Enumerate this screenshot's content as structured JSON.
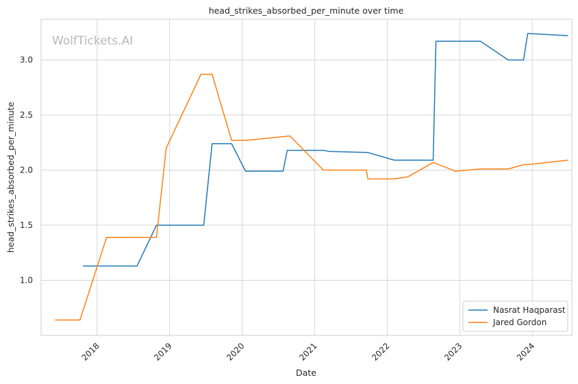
{
  "chart_data": {
    "type": "line",
    "title": "head_strikes_absorbed_per_minute over time",
    "xlabel": "Date",
    "ylabel": "head_strikes_absorbed_per_minute",
    "watermark": "WolfTickets.AI",
    "xlim": [
      "2017-03-25",
      "2024-07-18"
    ],
    "ylim": [
      0.5,
      3.37
    ],
    "x_ticks": [
      "2018",
      "2019",
      "2020",
      "2021",
      "2022",
      "2023",
      "2024"
    ],
    "y_ticks": [
      "1.0",
      "1.5",
      "2.0",
      "2.5",
      "3.0"
    ],
    "grid": true,
    "legend_position": "bottom-right",
    "series": [
      {
        "name": "Nasrat Haqparast",
        "color": "#1f77b4",
        "points": [
          [
            "2017-10-22",
            1.13
          ],
          [
            "2018-07-21",
            1.13
          ],
          [
            "2018-10-27",
            1.5
          ],
          [
            "2019-06-22",
            1.5
          ],
          [
            "2019-08-03",
            2.24
          ],
          [
            "2019-11-09",
            2.24
          ],
          [
            "2020-01-18",
            1.99
          ],
          [
            "2020-07-25",
            1.99
          ],
          [
            "2020-08-15",
            2.18
          ],
          [
            "2021-02-13",
            2.18
          ],
          [
            "2021-03-13",
            2.17
          ],
          [
            "2021-09-25",
            2.16
          ],
          [
            "2022-02-05",
            2.09
          ],
          [
            "2022-08-20",
            2.09
          ],
          [
            "2022-09-03",
            3.17
          ],
          [
            "2023-04-15",
            3.17
          ],
          [
            "2023-09-02",
            3.0
          ],
          [
            "2023-11-18",
            3.0
          ],
          [
            "2023-12-09",
            3.24
          ],
          [
            "2024-06-29",
            3.22
          ]
        ]
      },
      {
        "name": "Jared Gordon",
        "color": "#ff7f0e",
        "points": [
          [
            "2017-06-03",
            0.64
          ],
          [
            "2017-10-07",
            0.64
          ],
          [
            "2018-02-18",
            1.39
          ],
          [
            "2018-10-27",
            1.39
          ],
          [
            "2018-12-15",
            2.2
          ],
          [
            "2019-06-08",
            2.87
          ],
          [
            "2019-08-03",
            2.87
          ],
          [
            "2019-11-09",
            2.27
          ],
          [
            "2020-01-18",
            2.27
          ],
          [
            "2020-08-29",
            2.31
          ],
          [
            "2021-02-13",
            2.0
          ],
          [
            "2021-09-18",
            2.0
          ],
          [
            "2021-09-25",
            1.92
          ],
          [
            "2022-02-05",
            1.92
          ],
          [
            "2022-04-16",
            1.94
          ],
          [
            "2022-08-20",
            2.07
          ],
          [
            "2022-12-10",
            1.99
          ],
          [
            "2023-04-15",
            2.01
          ],
          [
            "2023-09-02",
            2.01
          ],
          [
            "2023-11-18",
            2.05
          ],
          [
            "2023-12-09",
            2.05
          ],
          [
            "2024-06-29",
            2.09
          ]
        ]
      }
    ]
  }
}
